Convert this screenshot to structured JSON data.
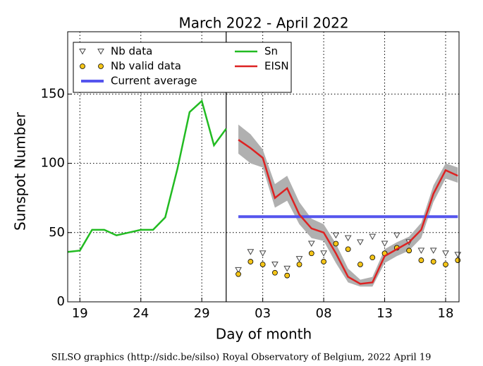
{
  "chart_data": {
    "type": "line",
    "title": "March 2022 - April 2022",
    "x_label": "Day of month",
    "y_label": "Sunspot Number",
    "footer": "SILSO graphics (http://sidc.be/silso) Royal Observatory of Belgium, 2022 April 19",
    "xlim": [
      18,
      50.1
    ],
    "ylim": [
      0,
      195
    ],
    "xticks": [
      {
        "value": 19,
        "label": "19"
      },
      {
        "value": 24,
        "label": "24"
      },
      {
        "value": 29,
        "label": "29"
      },
      {
        "value": 34,
        "label": "03"
      },
      {
        "value": 39,
        "label": "08"
      },
      {
        "value": 44,
        "label": "13"
      },
      {
        "value": 49,
        "label": "18"
      }
    ],
    "yticks": [
      0,
      50,
      100,
      150
    ],
    "grid": true,
    "legend": "upper left",
    "now": 31,
    "band": {
      "color": "#b0b0b0",
      "x": [
        32,
        33,
        34,
        35,
        36,
        37,
        38,
        39,
        40,
        41,
        42,
        43,
        44,
        45,
        46,
        47,
        48,
        49,
        50
      ],
      "upper": [
        128,
        121,
        110,
        85,
        91,
        72,
        60,
        56,
        42,
        24,
        16,
        18,
        38,
        43,
        47,
        57,
        84,
        100,
        97
      ],
      "lower": [
        107,
        100,
        97,
        68,
        73,
        56,
        46,
        44,
        28,
        14,
        11,
        11,
        28,
        33,
        37,
        46,
        72,
        89,
        86
      ]
    },
    "series": [
      {
        "name": "Nb data",
        "marker": "triangle",
        "color": "#ffffff",
        "x": [
          32,
          33,
          34,
          35,
          36,
          37,
          38,
          39,
          40,
          41,
          42,
          43,
          44,
          45,
          46,
          47,
          48,
          49,
          50
        ],
        "values": [
          23,
          36,
          35,
          27,
          24,
          31,
          42,
          35,
          48,
          46,
          43,
          47,
          42,
          48,
          43,
          37,
          37,
          35,
          34
        ]
      },
      {
        "name": "Nb valid data",
        "marker": "circle",
        "color": "#f5c518",
        "x": [
          32,
          33,
          34,
          35,
          36,
          37,
          38,
          39,
          40,
          41,
          42,
          43,
          44,
          45,
          46,
          47,
          48,
          49,
          50
        ],
        "values": [
          20,
          29,
          27,
          21,
          19,
          27,
          35,
          29,
          42,
          38,
          27,
          32,
          35,
          39,
          37,
          30,
          29,
          27,
          30
        ]
      },
      {
        "name": "Current average",
        "marker": "line",
        "color": "#5555ee",
        "x": [
          32,
          50
        ],
        "values": [
          61.5,
          61.5
        ]
      },
      {
        "name": "Sn",
        "marker": "line",
        "color": "#22bb22",
        "x": [
          18,
          19,
          20,
          21,
          22,
          23,
          24,
          25,
          26,
          27,
          28,
          29,
          30,
          31
        ],
        "values": [
          36,
          37,
          52,
          52,
          48,
          50,
          52,
          52,
          61,
          96,
          137,
          145,
          113,
          125
        ]
      },
      {
        "name": "EISN",
        "marker": "line",
        "color": "#dd2222",
        "x": [
          32,
          33,
          34,
          35,
          36,
          37,
          38,
          39,
          40,
          41,
          42,
          43,
          44,
          45,
          46,
          47,
          48,
          49,
          50
        ],
        "values": [
          117,
          111,
          104,
          75,
          82,
          63,
          53,
          50,
          35,
          18,
          13,
          14,
          33,
          38,
          43,
          52,
          78,
          95,
          91
        ]
      }
    ]
  }
}
